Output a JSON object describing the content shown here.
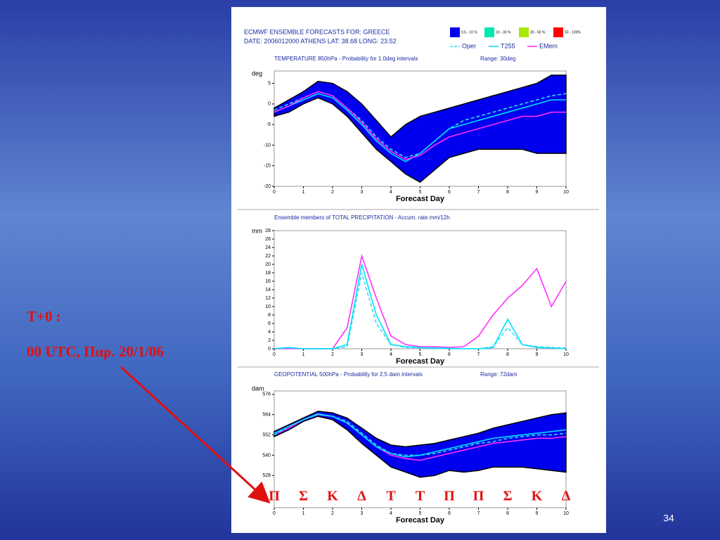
{
  "slide": {
    "label_line1": "T+0 :",
    "label_line2": "00 UTC, Παρ. 20/1/06",
    "page_number": "34",
    "day_letters": [
      "Π",
      "Σ",
      "Κ",
      "Δ",
      "Τ",
      "Τ",
      "Π",
      "Π",
      "Σ",
      "Κ",
      "Δ"
    ]
  },
  "chart_data": [
    {
      "type": "line",
      "header": [
        "ECMWF ENSEMBLE FORECASTS FOR:  GREECE",
        "DATE: 2006012000  ATHENS  LAT: 38.68  LONG: 23.52"
      ],
      "title": "TEMPERATURE 850hPa - Probability for 1.0deg intervals",
      "subtitle": "Range: 30deg",
      "ylabel": "deg",
      "xlabel": "Forecast Day",
      "x": [
        0,
        0.5,
        1,
        1.5,
        2,
        2.5,
        3,
        3.5,
        4,
        4.5,
        5,
        5.5,
        6,
        6.5,
        7,
        7.5,
        8,
        8.5,
        9,
        9.5,
        10
      ],
      "xlim": [
        0,
        10
      ],
      "xticks": [
        0,
        1,
        2,
        3,
        4,
        5,
        6,
        7,
        8,
        9,
        10
      ],
      "ylim": [
        -20,
        8
      ],
      "yticks": [
        5,
        0,
        -5,
        -10,
        -15,
        -20
      ],
      "bands": [
        {
          "name": "0.5 - 10 %",
          "color": "#0000ee",
          "upper": [
            -1,
            1,
            3,
            5.5,
            5,
            3,
            0,
            -4,
            -8,
            -5,
            -3,
            -2,
            -1,
            0,
            1,
            2,
            3,
            4,
            5,
            7,
            7
          ],
          "lower": [
            -3,
            -2,
            0,
            1.5,
            0,
            -3,
            -7,
            -11,
            -14,
            -17,
            -19,
            -16,
            -13,
            -12,
            -11,
            -11,
            -11,
            -11,
            -12,
            -12,
            -12
          ]
        },
        {
          "name": "10 - 30 %",
          "color": "#00e8b0"
        },
        {
          "name": "30 - 50 %",
          "color": "#a8e800"
        },
        {
          "name": "50 - 100%",
          "color": "#ff0000"
        }
      ],
      "series": [
        {
          "name": "Oper",
          "color": "#33ddee",
          "dash": true,
          "values": [
            -1.5,
            0,
            1.5,
            3,
            2,
            -1,
            -4,
            -8,
            -11,
            -13,
            -12,
            -9,
            -6,
            -4,
            -3,
            -2,
            -1,
            0,
            1,
            2,
            2.5
          ]
        },
        {
          "name": "T255",
          "color": "#00e0ff",
          "dash": false,
          "values": [
            -2,
            -0.5,
            1,
            2.5,
            1.5,
            -1.5,
            -5,
            -9,
            -12,
            -14,
            -12,
            -9,
            -6,
            -5,
            -4,
            -3,
            -2,
            -1,
            0,
            1,
            1
          ]
        },
        {
          "name": "EMem",
          "color": "#ff30ff",
          "dash": false,
          "values": [
            -2,
            -0.5,
            1.5,
            3,
            2,
            -1,
            -4.5,
            -8.5,
            -11.5,
            -13.5,
            -12.5,
            -10,
            -8,
            -7,
            -6,
            -5,
            -4,
            -3,
            -3,
            -2,
            -2
          ]
        }
      ]
    },
    {
      "type": "line",
      "title": "Ensemble members of TOTAL PRECIPITATION - Accum. rate mm/12h",
      "ylabel": "mm",
      "xlabel": "Forecast Day",
      "x": [
        0,
        0.5,
        1,
        1.5,
        2,
        2.5,
        3,
        3.5,
        4,
        4.5,
        5,
        5.5,
        6,
        6.5,
        7,
        7.5,
        8,
        8.5,
        9,
        9.5,
        10
      ],
      "xlim": [
        0,
        10
      ],
      "xticks": [
        0,
        1,
        2,
        3,
        4,
        5,
        6,
        7,
        8,
        9,
        10
      ],
      "ylim": [
        0,
        28
      ],
      "yticks": [
        0,
        2,
        4,
        6,
        8,
        10,
        12,
        14,
        16,
        18,
        20,
        22,
        24,
        26,
        28
      ],
      "series": [
        {
          "name": "EMem",
          "color": "#ff30ff",
          "dash": false,
          "values": [
            0,
            0,
            0,
            0,
            0,
            5,
            22,
            12,
            3,
            1,
            0.5,
            0.5,
            0.3,
            0.5,
            3,
            8,
            12,
            15,
            19,
            10,
            16
          ]
        },
        {
          "name": "Oper",
          "color": "#33ddee",
          "dash": true,
          "values": [
            0,
            0.2,
            0,
            0,
            0,
            0.5,
            18,
            6,
            1,
            0.3,
            0.2,
            0.1,
            0,
            0,
            0,
            0.5,
            5,
            1,
            0.5,
            0.3,
            0.2
          ]
        },
        {
          "name": "T255",
          "color": "#00e0ff",
          "dash": false,
          "values": [
            0,
            0.3,
            0,
            0,
            0,
            1,
            20,
            8,
            1,
            0.5,
            0.3,
            0.2,
            0.1,
            0,
            0,
            0.3,
            7,
            1,
            0.3,
            0.2,
            0
          ]
        }
      ]
    },
    {
      "type": "line",
      "title": "GEOPOTENTIAL 500hPa - Probability for 2.5 dam intervals",
      "subtitle": "Range: 72dam",
      "ylabel": "dam",
      "xlabel": "Forecast Day",
      "x": [
        0,
        0.5,
        1,
        1.5,
        2,
        2.5,
        3,
        3.5,
        4,
        4.5,
        5,
        5.5,
        6,
        6.5,
        7,
        7.5,
        8,
        8.5,
        9,
        9.5,
        10
      ],
      "xlim": [
        0,
        10
      ],
      "xticks": [
        0,
        1,
        2,
        3,
        4,
        5,
        6,
        7,
        8,
        9,
        10
      ],
      "ylim": [
        509,
        578
      ],
      "yticks": [
        528,
        540,
        552,
        564,
        576
      ],
      "bands": [
        {
          "name": "0.5 - 10 %",
          "color": "#0000ee",
          "upper": [
            554,
            558,
            562,
            566,
            565,
            562,
            556,
            550,
            546,
            545,
            546,
            547,
            549,
            551,
            553,
            556,
            558,
            560,
            562,
            564,
            565
          ],
          "lower": [
            551,
            555,
            560,
            563,
            561,
            555,
            547,
            540,
            533,
            530,
            527,
            528,
            531,
            530,
            531,
            533,
            533,
            533,
            532,
            531,
            530
          ]
        }
      ],
      "series": [
        {
          "name": "EMem",
          "color": "#ff30ff",
          "dash": false,
          "values": [
            552,
            556,
            561,
            564,
            563,
            559,
            552,
            545,
            540,
            538,
            537,
            539,
            541,
            543,
            545,
            547,
            548,
            549,
            550,
            550,
            551
          ]
        },
        {
          "name": "Oper",
          "color": "#33ddee",
          "dash": true,
          "values": [
            552,
            557,
            561,
            564,
            563,
            560,
            553,
            546,
            541,
            540,
            540,
            541,
            543,
            545,
            547,
            548,
            550,
            551,
            552,
            552,
            553
          ]
        },
        {
          "name": "T255",
          "color": "#00e0ff",
          "dash": false,
          "values": [
            553,
            557,
            561,
            564.5,
            563,
            559,
            552,
            545,
            541,
            539,
            540,
            542,
            544,
            546,
            548,
            550,
            551,
            552,
            553,
            554,
            555
          ]
        }
      ]
    }
  ]
}
